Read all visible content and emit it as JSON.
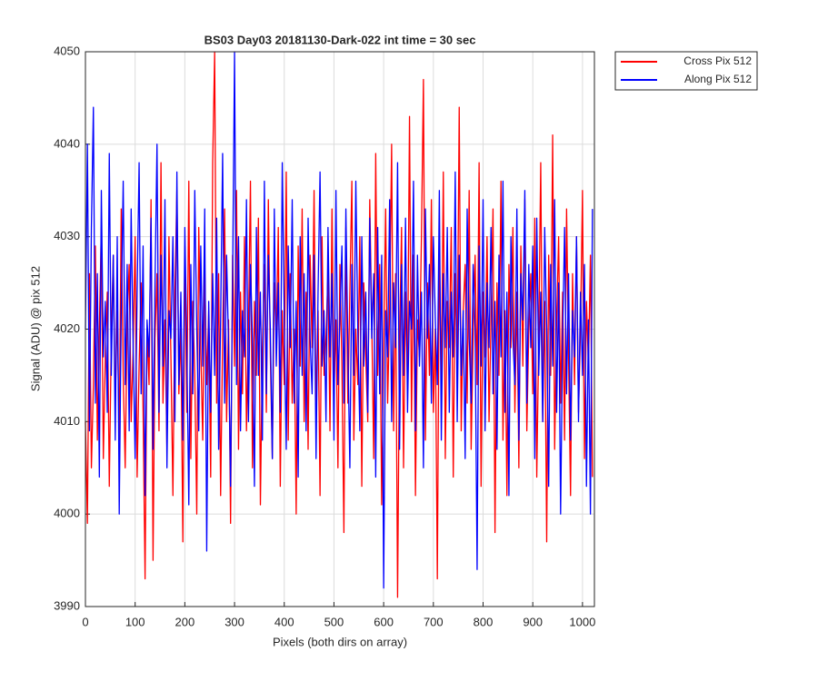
{
  "chart_data": {
    "type": "line",
    "title": "BS03 Day03 20181130-Dark-022 int time = 30 sec",
    "x_label": "Pixels (both dirs on array)",
    "y_label": "Signal (ADU) @ pix 512",
    "xlim": [
      0,
      1024
    ],
    "ylim": [
      3990,
      4050
    ],
    "xticks": [
      0,
      100,
      200,
      300,
      400,
      500,
      600,
      700,
      800,
      900,
      1000
    ],
    "yticks": [
      3990,
      4000,
      4010,
      4020,
      4030,
      4040,
      4050
    ],
    "grid": true,
    "legend_location": "northeastoutside",
    "x": [
      0,
      4,
      8,
      12,
      16,
      20,
      24,
      28,
      32,
      36,
      40,
      44,
      48,
      52,
      56,
      60,
      64,
      68,
      72,
      76,
      80,
      84,
      88,
      92,
      96,
      100,
      104,
      108,
      112,
      116,
      120,
      124,
      128,
      132,
      136,
      140,
      144,
      148,
      152,
      156,
      160,
      164,
      168,
      172,
      176,
      180,
      184,
      188,
      192,
      196,
      200,
      204,
      208,
      212,
      216,
      220,
      224,
      228,
      232,
      236,
      240,
      244,
      248,
      252,
      256,
      260,
      264,
      268,
      272,
      276,
      280,
      284,
      288,
      292,
      296,
      300,
      304,
      308,
      312,
      316,
      320,
      324,
      328,
      332,
      336,
      340,
      344,
      348,
      352,
      356,
      360,
      364,
      368,
      372,
      376,
      380,
      384,
      388,
      392,
      396,
      400,
      404,
      408,
      412,
      416,
      420,
      424,
      428,
      432,
      436,
      440,
      444,
      448,
      452,
      456,
      460,
      464,
      468,
      472,
      476,
      480,
      484,
      488,
      492,
      496,
      500,
      504,
      508,
      512,
      516,
      520,
      524,
      528,
      532,
      536,
      540,
      544,
      548,
      552,
      556,
      560,
      564,
      568,
      572,
      576,
      580,
      584,
      588,
      592,
      596,
      600,
      604,
      608,
      612,
      616,
      620,
      624,
      628,
      632,
      636,
      640,
      644,
      648,
      652,
      656,
      660,
      664,
      668,
      672,
      676,
      680,
      684,
      688,
      692,
      696,
      700,
      704,
      708,
      712,
      716,
      720,
      724,
      728,
      732,
      736,
      740,
      744,
      748,
      752,
      756,
      760,
      764,
      768,
      772,
      776,
      780,
      784,
      788,
      792,
      796,
      800,
      804,
      808,
      812,
      816,
      820,
      824,
      828,
      832,
      836,
      840,
      844,
      848,
      852,
      856,
      860,
      864,
      868,
      872,
      876,
      880,
      884,
      888,
      892,
      896,
      900,
      904,
      908,
      912,
      916,
      920,
      924,
      928,
      932,
      936,
      940,
      944,
      948,
      952,
      956,
      960,
      964,
      968,
      972,
      976,
      980,
      984,
      988,
      992,
      996,
      1000,
      1004,
      1008,
      1012,
      1016,
      1020
    ],
    "series": [
      {
        "name": "Cross Pix 512",
        "color": "#ff0000",
        "values": [
          4010,
          3999,
          4026,
          4005,
          4014,
          4029,
          4008,
          4020,
          4031,
          4006,
          4017,
          4024,
          4003,
          4019,
          4028,
          4012,
          4022,
          4008,
          4033,
          4015,
          4005,
          4021,
          4027,
          4010,
          4018,
          4030,
          4004,
          4016,
          4025,
          4011,
          3993,
          4020,
          4014,
          4034,
          3995,
          4019,
          4026,
          4009,
          4038,
          4012,
          4021,
          4007,
          4030,
          4017,
          4002,
          4024,
          4035,
          4013,
          4020,
          3997,
          4029,
          4011,
          4036,
          4006,
          4023,
          4015,
          4000,
          4031,
          4018,
          4008,
          4027,
          4014,
          4022,
          4004,
          4038,
          4050,
          4012,
          4026,
          4002,
          4019,
          4033,
          4010,
          4021,
          3999,
          4028,
          4016,
          4035,
          4007,
          4024,
          4013,
          4030,
          4009,
          4020,
          4036,
          4005,
          4023,
          4015,
          4032,
          4001,
          4018,
          4027,
          4011,
          4034,
          4017,
          4006,
          4025,
          4019,
          4031,
          4003,
          4022,
          4014,
          4037,
          4008,
          4026,
          4012,
          4020,
          4000,
          4029,
          4016,
          4033,
          4010,
          4024,
          4007,
          4028,
          4018,
          4035,
          4011,
          4022,
          4002,
          4030,
          4015,
          4019,
          4026,
          4009,
          4033,
          4013,
          4021,
          4005,
          4027,
          4016,
          3998,
          4031,
          4012,
          4024,
          4036,
          4008,
          4020,
          4014,
          4030,
          4003,
          4025,
          4017,
          4010,
          4034,
          4021,
          4006,
          4039,
          4015,
          4027,
          4001,
          4018,
          4033,
          4012,
          4022,
          4040,
          4009,
          4026,
          3991,
          4019,
          4031,
          4005,
          4024,
          4014,
          4043,
          4010,
          4028,
          4002,
          4021,
          4017,
          4030,
          4047,
          4008,
          4025,
          4015,
          4034,
          4011,
          4020,
          3993,
          4029,
          4013,
          4037,
          4006,
          4023,
          4018,
          4031,
          4004,
          4026,
          4016,
          4044,
          4009,
          4022,
          4027,
          4012,
          4035,
          4007,
          4019,
          4028,
          4014,
          4038,
          4003,
          4024,
          4017,
          4030,
          4010,
          4021,
          4033,
          3998,
          4025,
          4015,
          4036,
          4008,
          4022,
          4002,
          4027,
          4018,
          4031,
          4011,
          4024,
          4005,
          4029,
          4016,
          4034,
          4009,
          4020,
          4026,
          4013,
          4032,
          4004,
          4019,
          4038,
          4010,
          4023,
          3997,
          4028,
          4015,
          4041,
          4007,
          4021,
          4030,
          4012,
          4024,
          4008,
          4033,
          4017,
          4002,
          4026,
          4014,
          4030,
          4011,
          4020,
          4035,
          4006,
          4023,
          4016,
          4028,
          4004
        ]
      },
      {
        "name": "Along Pix 512",
        "color": "#0000ff",
        "values": [
          4020,
          4040,
          4009,
          4031,
          4044,
          4012,
          4026,
          4004,
          4035,
          4017,
          4023,
          4011,
          4039,
          4015,
          4028,
          4008,
          4030,
          4000,
          4022,
          4036,
          4014,
          4027,
          4009,
          4033,
          4018,
          4006,
          4024,
          4038,
          4013,
          4029,
          4002,
          4021,
          4017,
          4032,
          4007,
          4025,
          4040,
          4011,
          4028,
          4016,
          4034,
          4005,
          4022,
          4019,
          4030,
          4010,
          4037,
          4014,
          4024,
          4008,
          4031,
          4018,
          4001,
          4027,
          4013,
          4035,
          4020,
          4009,
          4029,
          4016,
          4033,
          3996,
          4023,
          4011,
          4026,
          4015,
          4032,
          4007,
          4021,
          4039,
          4012,
          4028,
          4018,
          4003,
          4025,
          4050,
          4014,
          4030,
          4009,
          4022,
          4017,
          4034,
          4010,
          4027,
          4019,
          4003,
          4031,
          4015,
          4024,
          4008,
          4036,
          4013,
          4028,
          4020,
          4006,
          4033,
          4016,
          4025,
          4011,
          4038,
          4021,
          4007,
          4029,
          4018,
          4034,
          4012,
          4023,
          4004,
          4030,
          4015,
          4026,
          4009,
          4032,
          4019,
          4013,
          4028,
          4006,
          4024,
          4037,
          4016,
          4022,
          4010,
          4031,
          4017,
          4026,
          4008,
          4035,
          4014,
          4021,
          4029,
          4012,
          4033,
          4018,
          4005,
          4027,
          4015,
          4036,
          4020,
          4009,
          4030,
          4016,
          4024,
          4011,
          4032,
          4019,
          4026,
          4004,
          4031,
          4013,
          4028,
          3992,
          4022,
          4017,
          4034,
          4010,
          4025,
          4018,
          4038,
          4007,
          4027,
          4015,
          4032,
          4011,
          4023,
          4020,
          4036,
          4009,
          4028,
          4016,
          4024,
          4005,
          4033,
          4019,
          4027,
          4012,
          4030,
          4021,
          4014,
          4035,
          4008,
          4026,
          4018,
          4031,
          4011,
          4024,
          4017,
          4037,
          4010,
          4028,
          4015,
          4022,
          4006,
          4033,
          4019,
          4012,
          4027,
          4020,
          3994,
          4029,
          4016,
          4034,
          4009,
          4025,
          4018,
          4031,
          4013,
          4023,
          4007,
          4028,
          4017,
          4036,
          4011,
          4024,
          4002,
          4030,
          4019,
          4014,
          4033,
          4008,
          4026,
          4021,
          4035,
          4012,
          4027,
          4018,
          4029,
          4006,
          4032,
          4015,
          4024,
          4010,
          4031,
          4020,
          4003,
          4027,
          4016,
          4034,
          4011,
          4025,
          4000,
          4019,
          4031,
          4013,
          4026,
          4008,
          4022,
          4017,
          4030,
          4010,
          4024,
          4015,
          4027,
          4003,
          4021,
          4000,
          4033
        ]
      }
    ]
  }
}
